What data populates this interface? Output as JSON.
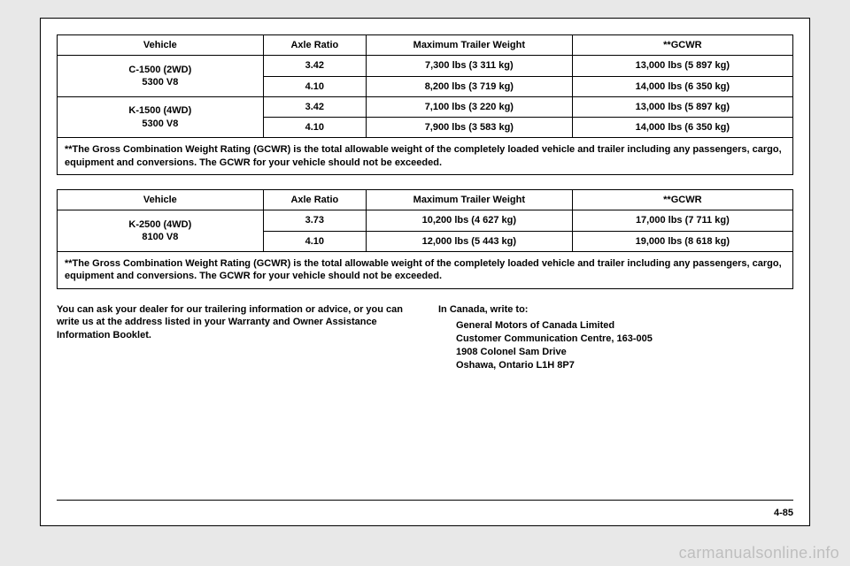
{
  "table1": {
    "headers": [
      "Vehicle",
      "Axle Ratio",
      "Maximum Trailer Weight",
      "**GCWR"
    ],
    "rows": [
      {
        "vehicle": "C-1500 (2WD)\n5300 V8",
        "axle": "3.42",
        "trailer": "7,300 lbs (3 311 kg)",
        "gcwr": "13,000 lbs (5 897 kg)"
      },
      {
        "vehicle": "",
        "axle": "4.10",
        "trailer": "8,200 lbs (3 719 kg)",
        "gcwr": "14,000 lbs (6 350 kg)"
      },
      {
        "vehicle": "K-1500 (4WD)\n5300 V8",
        "axle": "3.42",
        "trailer": "7,100 lbs (3 220 kg)",
        "gcwr": "13,000 lbs (5 897 kg)"
      },
      {
        "vehicle": "",
        "axle": "4.10",
        "trailer": "7,900 lbs (3 583 kg)",
        "gcwr": "14,000 lbs (6 350 kg)"
      }
    ],
    "footnote": "**The Gross Combination Weight Rating (GCWR) is the total allowable weight of the completely loaded vehicle and trailer including any passengers, cargo, equipment and conversions. The GCWR for your vehicle should not be exceeded."
  },
  "table2": {
    "headers": [
      "Vehicle",
      "Axle Ratio",
      "Maximum Trailer Weight",
      "**GCWR"
    ],
    "rows": [
      {
        "vehicle": "K-2500 (4WD)\n8100 V8",
        "axle": "3.73",
        "trailer": "10,200 lbs (4 627 kg)",
        "gcwr": "17,000 lbs (7 711 kg)"
      },
      {
        "vehicle": "",
        "axle": "4.10",
        "trailer": "12,000 lbs (5 443 kg)",
        "gcwr": "19,000 lbs (8 618 kg)"
      }
    ],
    "footnote": "**The Gross Combination Weight Rating (GCWR) is the total allowable weight of the completely loaded vehicle and trailer including any passengers, cargo, equipment and conversions. The GCWR for your vehicle should not be exceeded."
  },
  "body": {
    "left": "You can ask your dealer for our trailering information or advice, or you can write us at the address listed in your Warranty and Owner Assistance Information Booklet.",
    "right_intro": "In Canada, write to:",
    "address": [
      "General Motors of Canada Limited",
      "Customer Communication Centre, 163-005",
      "1908 Colonel Sam Drive",
      "Oshawa, Ontario L1H 8P7"
    ]
  },
  "page_num": "4-85",
  "watermark": "carmanualsonline.info"
}
